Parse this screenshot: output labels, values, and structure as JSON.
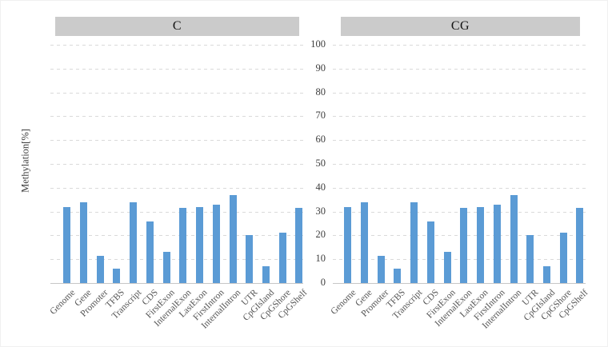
{
  "chart_data": {
    "type": "bar",
    "title": "",
    "xlabel": "",
    "ylabel": "Methylation[%]",
    "ylim": [
      0,
      100
    ],
    "yticks": [
      0,
      10,
      20,
      30,
      40,
      50,
      60,
      70,
      80,
      90,
      100
    ],
    "grid": "horizontal-dashed",
    "legend": "none",
    "bar_color": "#5b9bd5",
    "facet_header_bg": "#cbcbcb",
    "gridline_color": "#dadada",
    "categories": [
      "Genome",
      "Gene",
      "Promoter",
      "TFBS",
      "Transcript",
      "CDS",
      "FirstExon",
      "InternalExon",
      "LastExon",
      "FirstIntron",
      "InternalIntron",
      "UTR",
      "CpGIsland",
      "CpGShore",
      "CpGShelf"
    ],
    "facets": [
      {
        "label": "C",
        "values": [
          32,
          34,
          11.5,
          6,
          34,
          26,
          13,
          31.5,
          32,
          33,
          37,
          20,
          7,
          21,
          31.5
        ]
      },
      {
        "label": "CG",
        "values": [
          32,
          34,
          11.5,
          6,
          34,
          26,
          13,
          31.5,
          32,
          33,
          37,
          20,
          7,
          21,
          31.5
        ]
      }
    ]
  }
}
